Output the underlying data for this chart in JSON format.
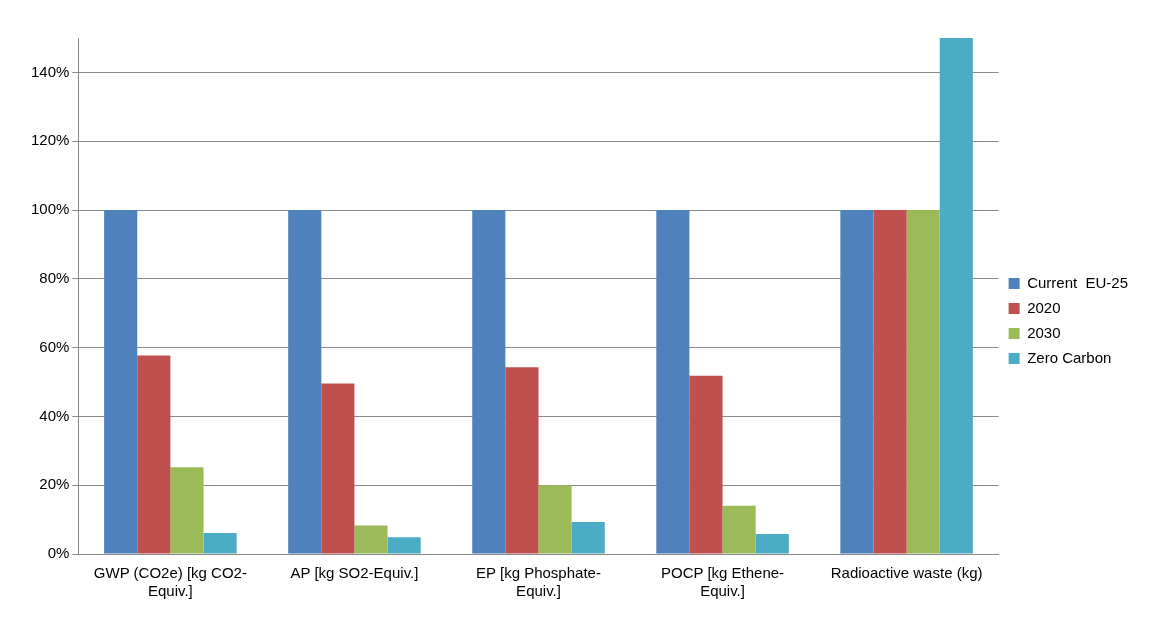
{
  "chart_data": {
    "type": "bar",
    "categories": [
      "GWP (CO2e)  [kg CO2-Equiv.]",
      "AP [kg SO2-Equiv.]",
      "EP [kg Phosphate-Equiv.]",
      "POCP [kg Ethene-Equiv.]",
      "Radioactive waste (kg)"
    ],
    "series": [
      {
        "name": "Current  EU-25",
        "color": "#4f81bd",
        "values": [
          100,
          100,
          100,
          100,
          100
        ]
      },
      {
        "name": "2020",
        "color": "#c0504d",
        "values": [
          57.7,
          49.6,
          54.3,
          51.8,
          100
        ]
      },
      {
        "name": "2030",
        "color": "#9bbb59",
        "values": [
          25.2,
          8.3,
          20,
          14,
          100
        ]
      },
      {
        "name": "Zero Carbon",
        "color": "#4bacc6",
        "values": [
          6.1,
          4.9,
          9.3,
          5.8,
          150
        ]
      }
    ],
    "ylim": [
      0,
      150
    ],
    "yticks": [
      {
        "value": 0,
        "label": "0%"
      },
      {
        "value": 20,
        "label": "20%"
      },
      {
        "value": 40,
        "label": "40%"
      },
      {
        "value": 60,
        "label": "60%"
      },
      {
        "value": 80,
        "label": "80%"
      },
      {
        "value": 100,
        "label": "100%"
      },
      {
        "value": 120,
        "label": "120%"
      },
      {
        "value": 140,
        "label": "140%"
      }
    ],
    "grid": "y",
    "legend": "right"
  }
}
